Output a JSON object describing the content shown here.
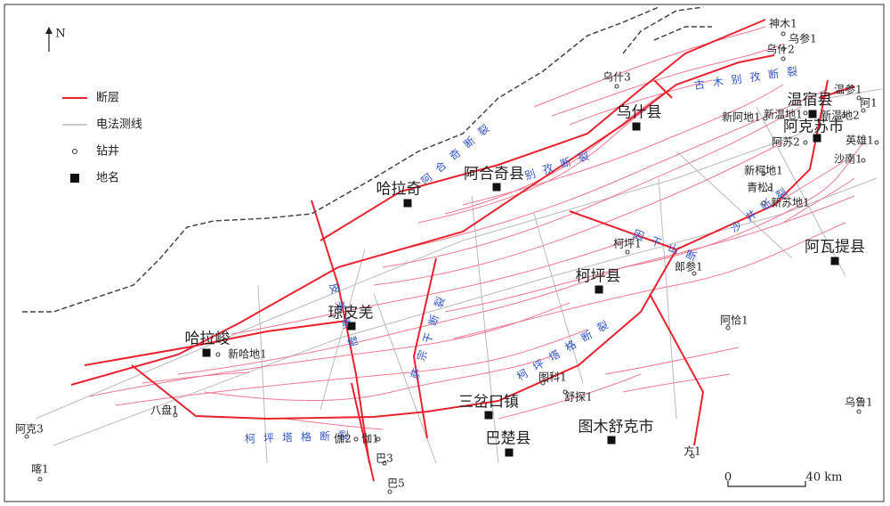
{
  "map": {
    "north": "N",
    "legend": [
      "断层",
      "电法测线",
      "钻井",
      "地名"
    ],
    "scale": {
      "start": "0",
      "end": "40 km"
    },
    "places": [
      {
        "label": "温宿县"
      },
      {
        "label": "阿克苏市"
      },
      {
        "label": "乌什县"
      },
      {
        "label": "阿合奇县"
      },
      {
        "label": "哈拉奇"
      },
      {
        "label": "阿瓦提县"
      },
      {
        "label": "柯坪县"
      },
      {
        "label": "琼皮羌"
      },
      {
        "label": "哈拉峻"
      },
      {
        "label": "三岔口镇"
      },
      {
        "label": "巴楚县"
      },
      {
        "label": "图木舒克市"
      }
    ],
    "wells": [
      {
        "label": "神木1"
      },
      {
        "label": "乌参1"
      },
      {
        "label": "乌什2"
      },
      {
        "label": "乌什3"
      },
      {
        "label": "温参1"
      },
      {
        "label": "阿1"
      },
      {
        "label": "新温地2"
      },
      {
        "label": "新温地1"
      },
      {
        "label": "新阿地1"
      },
      {
        "label": "阿苏2"
      },
      {
        "label": "英雄1"
      },
      {
        "label": "沙南1"
      },
      {
        "label": "新柯地1"
      },
      {
        "label": "青松1"
      },
      {
        "label": "新苏地1"
      },
      {
        "label": "柯坪1"
      },
      {
        "label": "郎参1"
      },
      {
        "label": "阿恰1"
      },
      {
        "label": "新哈地1"
      },
      {
        "label": "图科1"
      },
      {
        "label": "舒探1"
      },
      {
        "label": "八盘1"
      },
      {
        "label": "阿克3"
      },
      {
        "label": "喀1"
      },
      {
        "label": "伽2"
      },
      {
        "label": "伽1"
      },
      {
        "label": "巴3"
      },
      {
        "label": "巴5"
      },
      {
        "label": "方1"
      },
      {
        "label": "乌鲁1"
      }
    ],
    "fault_labels": [
      "古木别孜断裂",
      "阿合奇断裂",
      "别孜断裂",
      "沙井断裂",
      "因干山断裂",
      "皮羌断裂",
      "萨宗干断裂",
      "柯坪塔格断裂",
      "柯坪塔格断裂"
    ]
  }
}
